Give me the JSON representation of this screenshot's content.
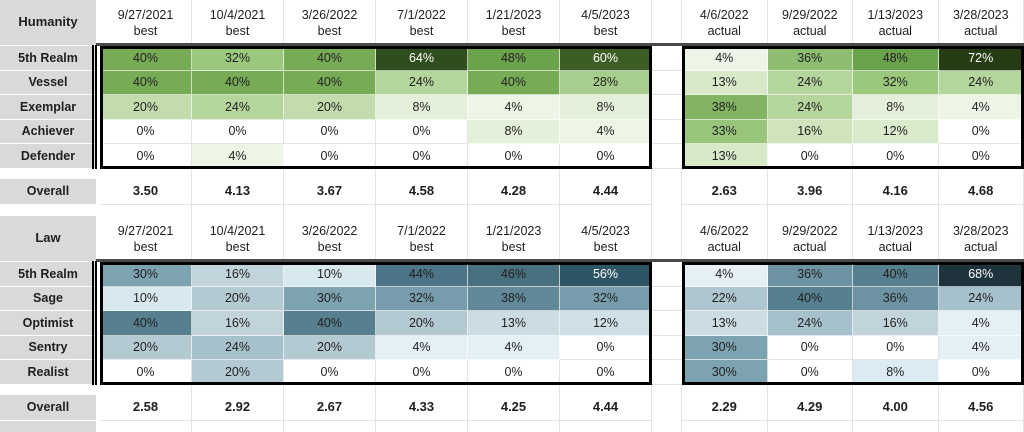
{
  "app": {
    "title": "score-comparison-spreadsheet"
  },
  "palette": {
    "label_bg": "#d9d9d9",
    "gridline": "#e3e3e3",
    "block_border": "#000000",
    "text_dark": "#1f1f1f",
    "text_light": "#ffffff",
    "white_text_min": 56
  },
  "scales": {
    "green": [
      [
        0,
        "#ffffff"
      ],
      [
        4,
        "#edf5e6"
      ],
      [
        8,
        "#e4f0da"
      ],
      [
        13,
        "#d8e9c9"
      ],
      [
        16,
        "#cfe4bd"
      ],
      [
        20,
        "#c2dcae"
      ],
      [
        24,
        "#b4d59c"
      ],
      [
        28,
        "#a8ce8d"
      ],
      [
        32,
        "#9cc87e"
      ],
      [
        36,
        "#8dbd70"
      ],
      [
        40,
        "#78ab55"
      ],
      [
        48,
        "#6ba24c"
      ],
      [
        60,
        "#3c5e24"
      ],
      [
        64,
        "#304d1d"
      ],
      [
        72,
        "#253c15"
      ]
    ],
    "blue": [
      [
        0,
        "#ffffff"
      ],
      [
        4,
        "#e4f0f5"
      ],
      [
        8,
        "#dcebf1"
      ],
      [
        10,
        "#d7e8ee"
      ],
      [
        13,
        "#ccdce3"
      ],
      [
        16,
        "#c2d4db"
      ],
      [
        20,
        "#b4cad3"
      ],
      [
        24,
        "#a7c1cc"
      ],
      [
        30,
        "#7da2b0"
      ],
      [
        32,
        "#779cab"
      ],
      [
        36,
        "#6d93a3"
      ],
      [
        40,
        "#567f90"
      ],
      [
        44,
        "#4d7587"
      ],
      [
        46,
        "#48707f"
      ],
      [
        56,
        "#2d5566"
      ],
      [
        68,
        "#1f333d"
      ]
    ]
  },
  "tables": [
    {
      "title": "Humanity",
      "scale": "green",
      "best_cols": [
        {
          "date": "9/27/2021",
          "type": "best"
        },
        {
          "date": "10/4/2021",
          "type": "best"
        },
        {
          "date": "3/26/2022",
          "type": "best"
        },
        {
          "date": "7/1/2022",
          "type": "best"
        },
        {
          "date": "1/21/2023",
          "type": "best"
        },
        {
          "date": "4/5/2023",
          "type": "best"
        }
      ],
      "actual_cols": [
        {
          "date": "4/6/2022",
          "type": "actual"
        },
        {
          "date": "9/29/2022",
          "type": "actual"
        },
        {
          "date": "1/13/2023",
          "type": "actual"
        },
        {
          "date": "3/28/2023",
          "type": "actual"
        }
      ],
      "rows": [
        {
          "label": "5th Realm",
          "best": [
            "40%",
            "32%",
            "40%",
            "64%",
            "48%",
            "60%"
          ],
          "actual": [
            "4%",
            "36%",
            "48%",
            "72%"
          ]
        },
        {
          "label": "Vessel",
          "best": [
            "40%",
            "40%",
            "40%",
            "24%",
            "40%",
            "28%"
          ],
          "actual": [
            "13%",
            "24%",
            "32%",
            "24%"
          ]
        },
        {
          "label": "Exemplar",
          "best": [
            "20%",
            "24%",
            "20%",
            "8%",
            "4%",
            "8%"
          ],
          "actual": [
            "38%",
            "24%",
            "8%",
            "4%"
          ]
        },
        {
          "label": "Achiever",
          "best": [
            "0%",
            "0%",
            "0%",
            "0%",
            "8%",
            "4%"
          ],
          "actual": [
            "33%",
            "16%",
            "12%",
            "0%"
          ]
        },
        {
          "label": "Defender",
          "best": [
            "0%",
            "4%",
            "0%",
            "0%",
            "0%",
            "0%"
          ],
          "actual": [
            "13%",
            "0%",
            "0%",
            "0%"
          ]
        }
      ],
      "overall": {
        "label": "Overall",
        "best": [
          "3.50",
          "4.13",
          "3.67",
          "4.58",
          "4.28",
          "4.44"
        ],
        "actual": [
          "2.63",
          "3.96",
          "4.16",
          "4.68"
        ]
      }
    },
    {
      "title": "Law",
      "scale": "blue",
      "best_cols": [
        {
          "date": "9/27/2021",
          "type": "best"
        },
        {
          "date": "10/4/2021",
          "type": "best"
        },
        {
          "date": "3/26/2022",
          "type": "best"
        },
        {
          "date": "7/1/2022",
          "type": "best"
        },
        {
          "date": "1/21/2023",
          "type": "best"
        },
        {
          "date": "4/5/2023",
          "type": "best"
        }
      ],
      "actual_cols": [
        {
          "date": "4/6/2022",
          "type": "actual"
        },
        {
          "date": "9/29/2022",
          "type": "actual"
        },
        {
          "date": "1/13/2023",
          "type": "actual"
        },
        {
          "date": "3/28/2023",
          "type": "actual"
        }
      ],
      "rows": [
        {
          "label": "5th Realm",
          "best": [
            "30%",
            "16%",
            "10%",
            "44%",
            "46%",
            "56%"
          ],
          "actual": [
            "4%",
            "36%",
            "40%",
            "68%"
          ]
        },
        {
          "label": "Sage",
          "best": [
            "10%",
            "20%",
            "30%",
            "32%",
            "38%",
            "32%"
          ],
          "actual": [
            "22%",
            "40%",
            "36%",
            "24%"
          ]
        },
        {
          "label": "Optimist",
          "best": [
            "40%",
            "16%",
            "40%",
            "20%",
            "13%",
            "12%"
          ],
          "actual": [
            "13%",
            "24%",
            "16%",
            "4%"
          ]
        },
        {
          "label": "Sentry",
          "best": [
            "20%",
            "24%",
            "20%",
            "4%",
            "4%",
            "0%"
          ],
          "actual": [
            "30%",
            "0%",
            "0%",
            "4%"
          ]
        },
        {
          "label": "Realist",
          "best": [
            "0%",
            "20%",
            "0%",
            "0%",
            "0%",
            "0%"
          ],
          "actual": [
            "30%",
            "0%",
            "8%",
            "0%"
          ]
        }
      ],
      "overall": {
        "label": "Overall",
        "best": [
          "2.58",
          "2.92",
          "2.67",
          "4.33",
          "4.25",
          "4.44"
        ],
        "actual": [
          "2.29",
          "4.29",
          "4.00",
          "4.56"
        ]
      }
    }
  ]
}
